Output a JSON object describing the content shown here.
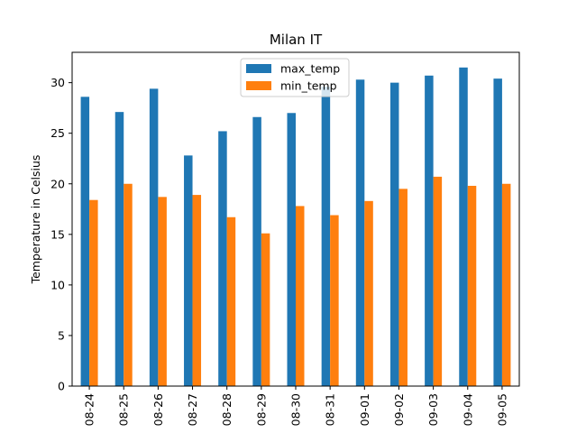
{
  "chart_data": {
    "type": "bar",
    "title": "Milan IT",
    "xlabel": "",
    "ylabel": "Temperature in Celsius",
    "categories": [
      "08-24",
      "08-25",
      "08-26",
      "08-27",
      "08-28",
      "08-29",
      "08-30",
      "08-31",
      "09-01",
      "09-02",
      "09-03",
      "09-04",
      "09-05"
    ],
    "series": [
      {
        "name": "max_temp",
        "color": "#1f77b4",
        "values": [
          28.6,
          27.1,
          29.4,
          22.8,
          25.2,
          26.6,
          27.0,
          29.6,
          30.3,
          30.0,
          30.7,
          31.5,
          30.4
        ]
      },
      {
        "name": "min_temp",
        "color": "#ff7f0e",
        "values": [
          18.4,
          20.0,
          18.7,
          18.9,
          16.7,
          15.1,
          17.8,
          16.9,
          18.3,
          19.5,
          20.7,
          19.8,
          20.0
        ]
      }
    ],
    "ylim": [
      0,
      33
    ],
    "yticks": [
      0,
      5,
      10,
      15,
      20,
      25,
      30
    ],
    "grid": false,
    "legend": "upper-center"
  }
}
